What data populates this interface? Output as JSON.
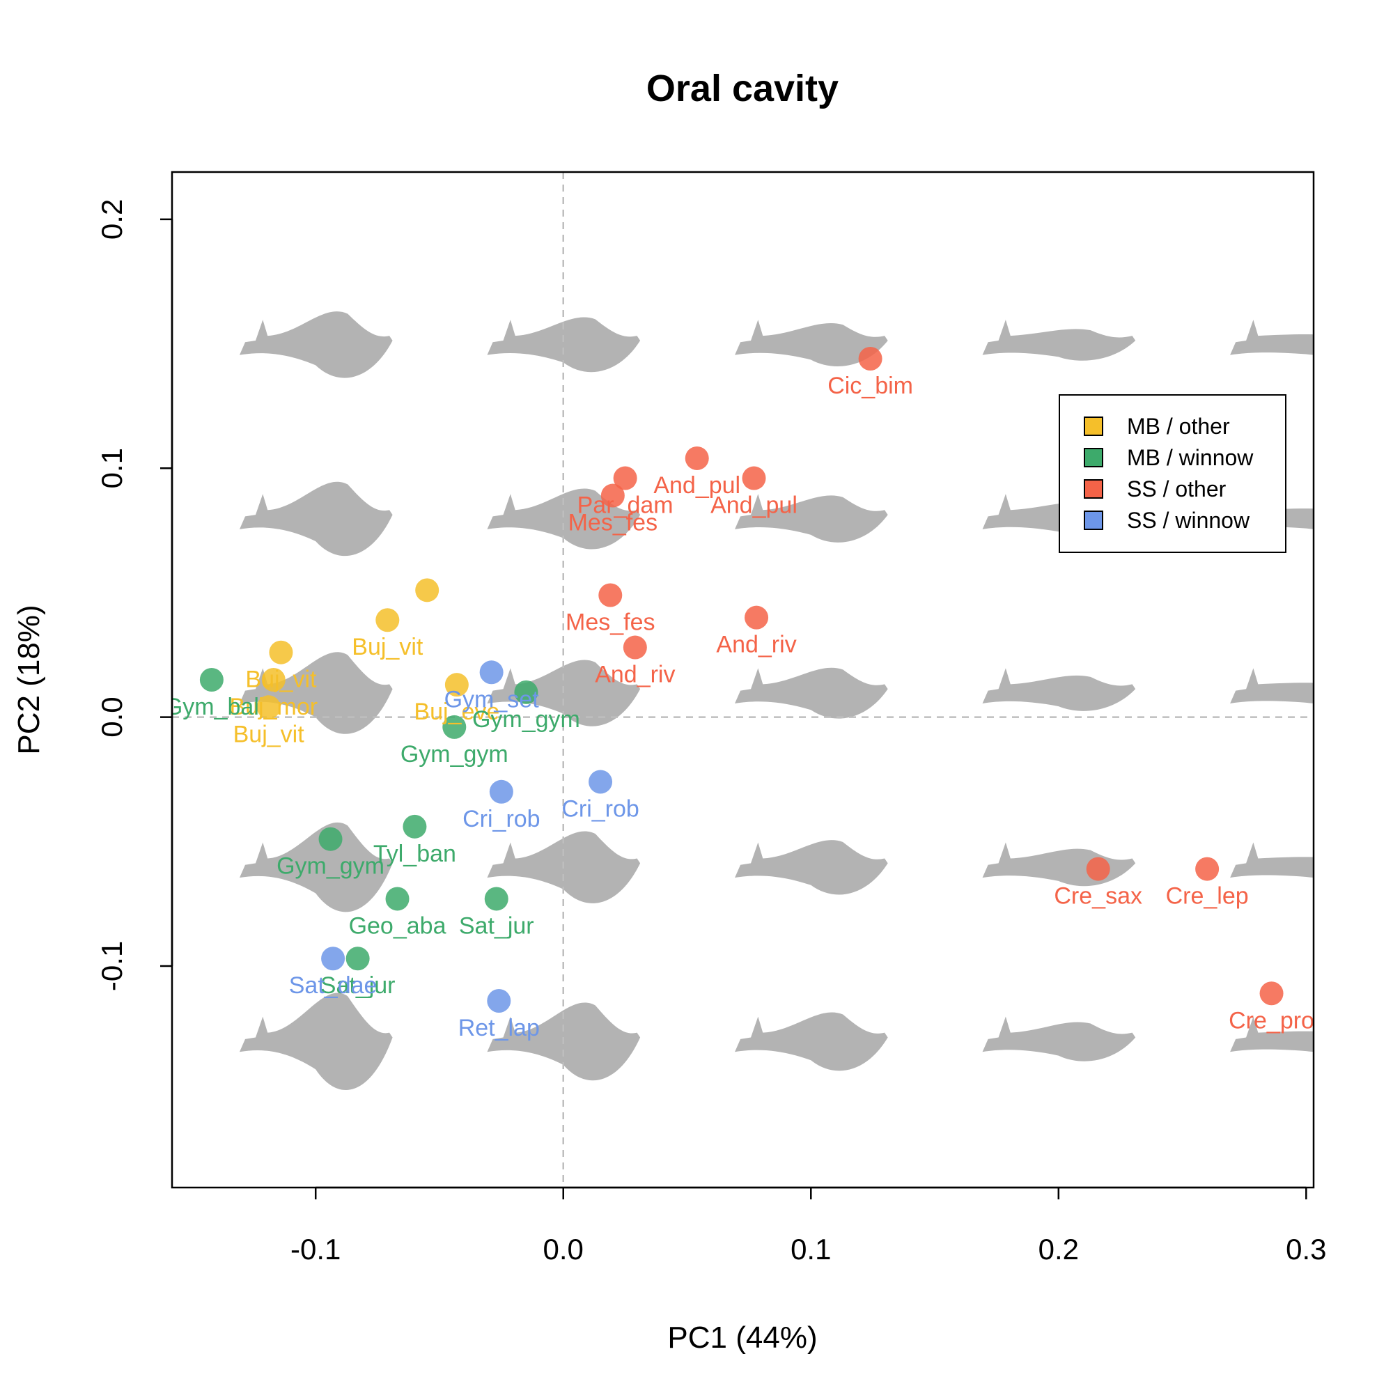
{
  "chart_data": {
    "type": "scatter",
    "title": "Oral cavity",
    "xlabel": "PC1 (44%)",
    "ylabel": "PC2 (18%)",
    "xlim": [
      -0.158,
      0.303
    ],
    "ylim": [
      -0.189,
      0.219
    ],
    "xticks": [
      {
        "v": -0.1,
        "label": "-0.1"
      },
      {
        "v": 0.0,
        "label": "0.0"
      },
      {
        "v": 0.1,
        "label": "0.1"
      },
      {
        "v": 0.2,
        "label": "0.2"
      },
      {
        "v": 0.3,
        "label": "0.3"
      }
    ],
    "yticks": [
      {
        "v": -0.1,
        "label": "-0.1"
      },
      {
        "v": 0.0,
        "label": "0.0"
      },
      {
        "v": 0.1,
        "label": "0.1"
      },
      {
        "v": 0.2,
        "label": "0.2"
      }
    ],
    "reference_lines": {
      "x": 0,
      "y": 0,
      "style": "dashed",
      "color": "#bebebe"
    },
    "legend": {
      "position": "top-right"
    },
    "background_shapes": {
      "color": "#b3b3b3",
      "columns_pc1": [
        -0.1,
        0.0,
        0.1,
        0.2,
        0.3
      ],
      "rows_pc2": [
        0.15,
        0.08,
        0.01,
        -0.06,
        -0.13
      ]
    },
    "series": [
      {
        "name": "MB / other",
        "color": "#F5BF2A",
        "points": [
          {
            "x": -0.055,
            "y": 0.051,
            "label": ""
          },
          {
            "x": -0.071,
            "y": 0.039,
            "label": "Buj_vit"
          },
          {
            "x": -0.114,
            "y": 0.026,
            "label": "Buj_vit"
          },
          {
            "x": -0.117,
            "y": 0.015,
            "label": "Buj_mor"
          },
          {
            "x": -0.119,
            "y": 0.004,
            "label": "Buj_vit"
          },
          {
            "x": -0.043,
            "y": 0.013,
            "label": "Buj_eve"
          }
        ]
      },
      {
        "name": "MB / winnow",
        "color": "#3DAA6B",
        "points": [
          {
            "x": -0.142,
            "y": 0.015,
            "label": "Gym_bal"
          },
          {
            "x": -0.044,
            "y": -0.004,
            "label": "Gym_gym"
          },
          {
            "x": -0.015,
            "y": 0.01,
            "label": "Gym_gym"
          },
          {
            "x": -0.06,
            "y": -0.044,
            "label": "Tyl_ban"
          },
          {
            "x": -0.094,
            "y": -0.049,
            "label": "Gym_gym"
          },
          {
            "x": -0.067,
            "y": -0.073,
            "label": "Geo_aba"
          },
          {
            "x": -0.027,
            "y": -0.073,
            "label": "Sat_jur"
          },
          {
            "x": -0.083,
            "y": -0.097,
            "label": "Sat_jur"
          }
        ]
      },
      {
        "name": "SS / other",
        "color": "#F46348",
        "points": [
          {
            "x": 0.124,
            "y": 0.144,
            "label": "Cic_bim"
          },
          {
            "x": 0.054,
            "y": 0.104,
            "label": "And_pul"
          },
          {
            "x": 0.077,
            "y": 0.096,
            "label": "And_pul"
          },
          {
            "x": 0.025,
            "y": 0.096,
            "label": "Par_dam"
          },
          {
            "x": 0.02,
            "y": 0.089,
            "label": "Mes_fes"
          },
          {
            "x": 0.019,
            "y": 0.049,
            "label": "Mes_fes"
          },
          {
            "x": 0.078,
            "y": 0.04,
            "label": "And_riv"
          },
          {
            "x": 0.029,
            "y": 0.028,
            "label": "And_riv"
          },
          {
            "x": 0.216,
            "y": -0.061,
            "label": "Cre_sax"
          },
          {
            "x": 0.26,
            "y": -0.061,
            "label": "Cre_lep"
          },
          {
            "x": 0.286,
            "y": -0.111,
            "label": "Cre_pro"
          }
        ]
      },
      {
        "name": "SS / winnow",
        "color": "#6D96E8",
        "points": [
          {
            "x": -0.029,
            "y": 0.018,
            "label": "Gym_set"
          },
          {
            "x": 0.015,
            "y": -0.026,
            "label": "Cri_rob"
          },
          {
            "x": -0.025,
            "y": -0.03,
            "label": "Cri_rob"
          },
          {
            "x": -0.093,
            "y": -0.097,
            "label": "Sat_dae"
          },
          {
            "x": -0.026,
            "y": -0.114,
            "label": "Ret_lap"
          }
        ]
      }
    ]
  }
}
